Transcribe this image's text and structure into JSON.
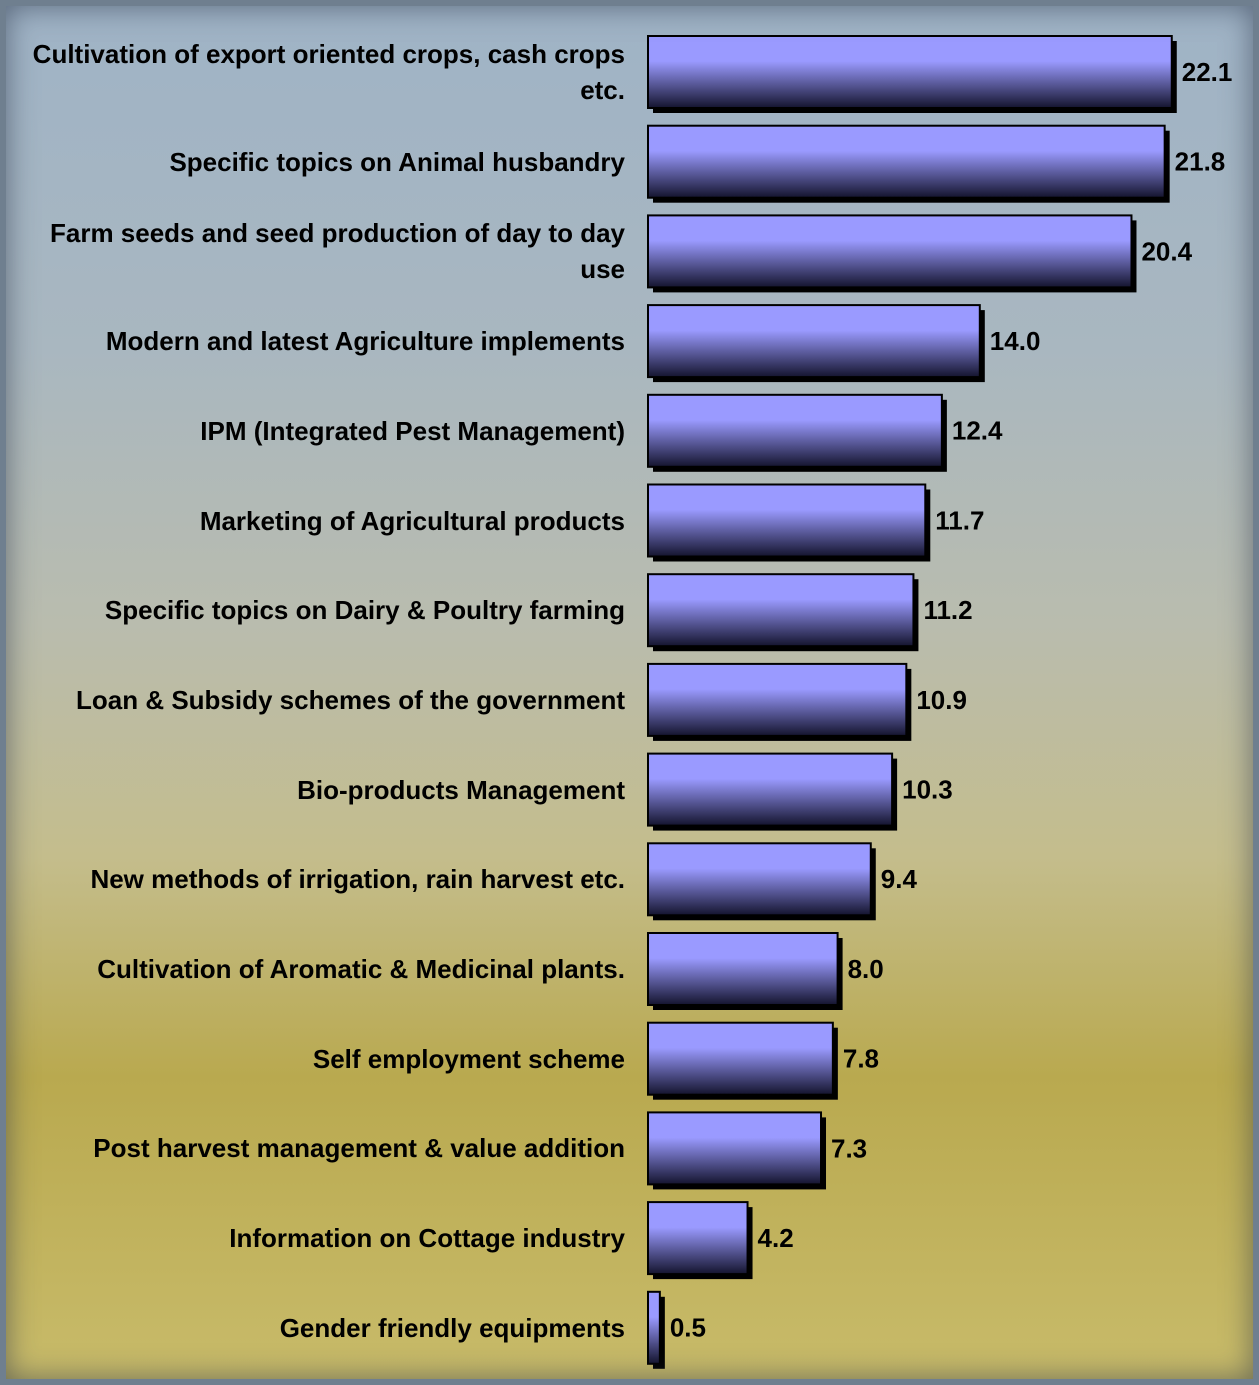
{
  "chart_data": {
    "type": "barh",
    "categories": [
      "Cultivation of export oriented crops, cash crops etc.",
      "Specific topics on Animal husbandry",
      "Farm seeds and seed production of day to day use",
      "Modern and latest Agriculture implements",
      "IPM (Integrated Pest Management)",
      "Marketing of Agricultural products",
      "Specific topics on Dairy & Poultry farming",
      "Loan & Subsidy schemes of the government",
      "Bio-products Management",
      "New methods of irrigation, rain harvest etc.",
      "Cultivation of Aromatic & Medicinal plants.",
      "Self employment scheme",
      "Post harvest management & value addition",
      "Information on Cottage industry",
      "Gender friendly equipments"
    ],
    "values": [
      22.1,
      21.8,
      20.4,
      14.0,
      12.4,
      11.7,
      11.2,
      10.9,
      10.3,
      9.4,
      8.0,
      7.8,
      7.3,
      4.2,
      0.5
    ],
    "value_labels": [
      "22.1",
      "21.8",
      "20.4",
      "14.0",
      "12.4",
      "11.7",
      "11.2",
      "10.9",
      "10.3",
      "9.4",
      "8.0",
      "7.8",
      "7.3",
      "4.2",
      "0.5"
    ],
    "color": "#9a9aff"
  }
}
